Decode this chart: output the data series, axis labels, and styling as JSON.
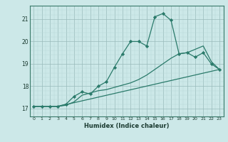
{
  "title": "",
  "xlabel": "Humidex (Indice chaleur)",
  "bg_color": "#cce8e8",
  "grid_color_minor": "#b8d8d8",
  "grid_color_major": "#99bbbb",
  "line_color": "#2a7a6a",
  "x_ticks": [
    0,
    1,
    2,
    3,
    4,
    5,
    6,
    7,
    8,
    9,
    10,
    11,
    12,
    13,
    14,
    15,
    16,
    17,
    18,
    19,
    20,
    21,
    22,
    23
  ],
  "y_ticks": [
    17,
    18,
    19,
    20,
    21
  ],
  "ylim": [
    16.65,
    21.6
  ],
  "xlim": [
    -0.5,
    23.5
  ],
  "line1_x": [
    0,
    1,
    2,
    3,
    4,
    5,
    6,
    7,
    8,
    9,
    10,
    11,
    12,
    13,
    14,
    15,
    16,
    17,
    18,
    19,
    20,
    21,
    22,
    23
  ],
  "line1_y": [
    17.1,
    17.1,
    17.1,
    17.1,
    17.2,
    17.55,
    17.75,
    17.65,
    18.0,
    18.2,
    18.85,
    19.45,
    20.0,
    20.0,
    19.8,
    21.1,
    21.25,
    20.95,
    19.45,
    19.5,
    19.3,
    19.5,
    19.0,
    18.75
  ],
  "line2_x": [
    0,
    3,
    4,
    5,
    6,
    7,
    8,
    9,
    10,
    11,
    12,
    13,
    14,
    15,
    16,
    17,
    18,
    19,
    20,
    21,
    22,
    23
  ],
  "line2_y": [
    17.1,
    17.1,
    17.15,
    17.3,
    17.6,
    17.7,
    17.8,
    17.85,
    17.95,
    18.05,
    18.15,
    18.3,
    18.5,
    18.75,
    19.0,
    19.25,
    19.45,
    19.5,
    19.65,
    19.8,
    19.1,
    18.75
  ],
  "line3_x": [
    0,
    3,
    23
  ],
  "line3_y": [
    17.1,
    17.1,
    18.75
  ]
}
